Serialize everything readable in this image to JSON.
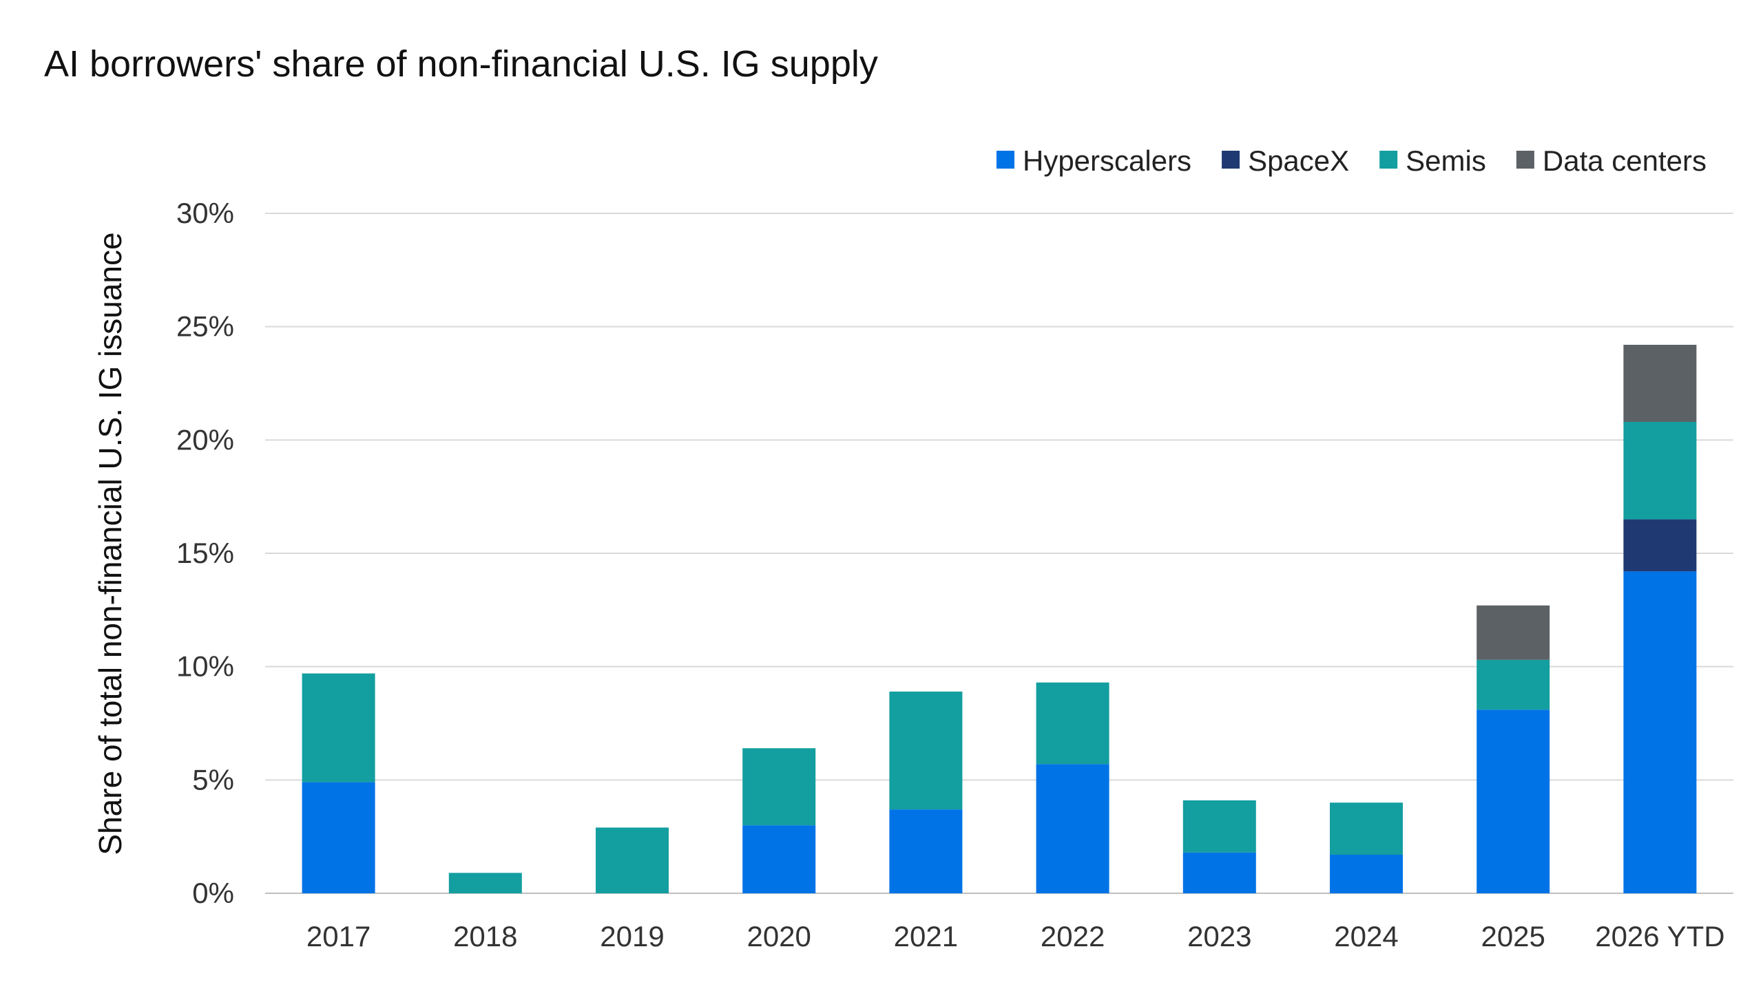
{
  "chart_data": {
    "type": "bar",
    "stacked": true,
    "title": "AI borrowers' share of non-financial U.S. IG supply",
    "xlabel": "",
    "ylabel": "Share of total non-financial U.S. IG issuance",
    "ylim": [
      0,
      30
    ],
    "yticks": [
      0,
      5,
      10,
      15,
      20,
      25,
      30
    ],
    "ytick_labels": [
      "0%",
      "5%",
      "10%",
      "15%",
      "20%",
      "25%",
      "30%"
    ],
    "grid": true,
    "legend_position": "top-right",
    "categories": [
      "2017",
      "2018",
      "2019",
      "2020",
      "2021",
      "2022",
      "2023",
      "2024",
      "2025",
      "2026 YTD"
    ],
    "series": [
      {
        "name": "Hyperscalers",
        "color": "#0073E6",
        "values": [
          4.9,
          0,
          0,
          3.0,
          3.7,
          5.7,
          1.8,
          1.7,
          8.1,
          14.2
        ]
      },
      {
        "name": "SpaceX",
        "color": "#1F3A73",
        "values": [
          0,
          0,
          0,
          0,
          0,
          0,
          0,
          0,
          0,
          2.3
        ]
      },
      {
        "name": "Semis",
        "color": "#139EA0",
        "values": [
          4.8,
          0.9,
          2.9,
          3.4,
          5.2,
          3.6,
          2.3,
          2.3,
          2.2,
          4.3
        ]
      },
      {
        "name": "Data centers",
        "color": "#5C6165",
        "values": [
          0,
          0,
          0,
          0,
          0,
          0,
          0,
          0,
          2.4,
          3.4
        ]
      }
    ]
  },
  "colors": {
    "grid": "#D9D9D9",
    "axis": "#BFBFBF",
    "background": "#FFFFFF"
  }
}
